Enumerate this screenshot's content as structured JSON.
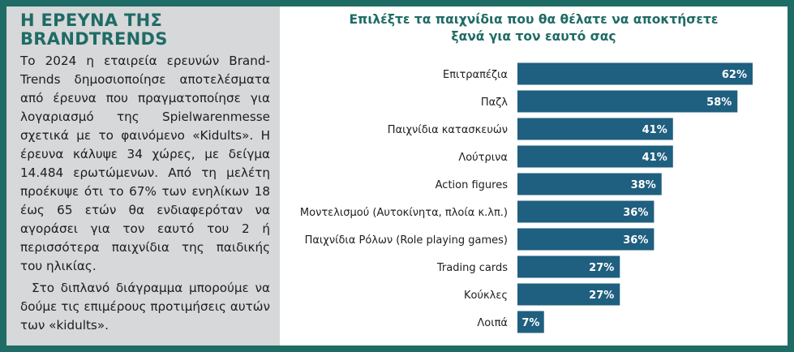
{
  "sidebar": {
    "title": "Η ΕΡΕΥΝΑ ΤΗΣ BRANDTRENDS",
    "paragraph1": "Το 2024 η εταιρεία ερευνών Brand-Trends δημοσιοποίησε αποτελέσματα από έρευνα που πραγματοποίησε για λογαριασμό της Spielwarenmesse σχετικά με το φαινόμενο «Kidults». Η έρευνα κάλυψε 34 χώρες, με δείγμα 14.484 ερωτώμενων. Από τη μελέτη προέκυψε ότι το 67% των ενηλίκων 18 έως 65 ετών θα ενδιαφερόταν να αγοράσει για τον εαυτό του 2 ή περισσότερα παιχνίδια της παιδικής του ηλικίας.",
    "paragraph2": "Στο διπλανό διάγραμμα μπορούμε να δούμε τις επιμέρους προτιμήσεις αυτών των «kidults»."
  },
  "colors": {
    "frame": "#1f6b66",
    "sidebar_bg": "#d7d8d9",
    "bar": "#1f5f7f",
    "title": "#1f6b66"
  },
  "chart_data": {
    "type": "bar",
    "orientation": "horizontal",
    "title_lines": [
      "Επιλέξτε τα παιχνίδια που θα θέλατε να αποκτήσετε",
      "ξανά για τον εαυτό σας"
    ],
    "categories": [
      "Επιτραπέζια",
      "Παζλ",
      "Παιχνίδια κατασκευών",
      "Λούτρινα",
      "Action figures",
      "Μοντελισμού (Αυτοκίνητα, πλοία κ.λπ.)",
      "Παιχνίδια Ρόλων (Role playing games)",
      "Trading cards",
      "Κούκλες",
      "Λοιπά"
    ],
    "values": [
      62,
      58,
      41,
      41,
      38,
      36,
      36,
      27,
      27,
      7
    ],
    "value_labels": [
      "62%",
      "58%",
      "41%",
      "41%",
      "38%",
      "36%",
      "36%",
      "27%",
      "27%",
      "7%"
    ],
    "unit": "%",
    "xlim": [
      0,
      62
    ],
    "grid": false,
    "legend": "none"
  }
}
